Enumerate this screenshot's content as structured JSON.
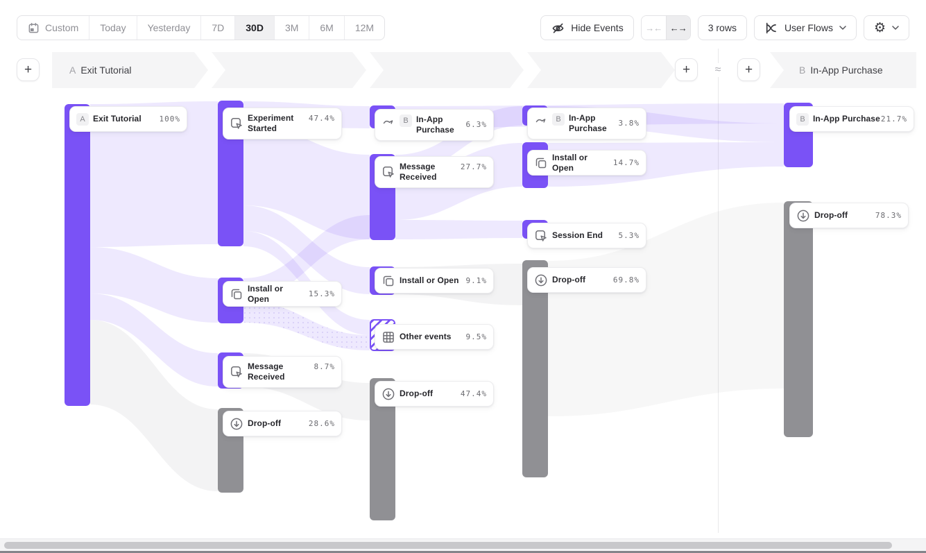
{
  "toolbar": {
    "date_ranges": [
      {
        "label": "Custom",
        "icon": "calendar-icon",
        "selected": false
      },
      {
        "label": "Today",
        "selected": false
      },
      {
        "label": "Yesterday",
        "selected": false
      },
      {
        "label": "7D",
        "selected": false
      },
      {
        "label": "30D",
        "selected": true
      },
      {
        "label": "3M",
        "selected": false
      },
      {
        "label": "6M",
        "selected": false
      },
      {
        "label": "12M",
        "selected": false
      }
    ],
    "hide_events_label": "Hide Events",
    "width_toggle": {
      "collapse_glyph": "→←",
      "expand_glyph": "←→",
      "active": "expand"
    },
    "rows_label": "3 rows",
    "view_selector_label": "User Flows",
    "settings_glyph": "⚙"
  },
  "flow_header": {
    "start": {
      "badge": "A",
      "label": "Exit Tutorial"
    },
    "end": {
      "badge": "B",
      "label": "In-App Purchase"
    },
    "connector_glyph": "≈",
    "add_step_glyph": "+"
  },
  "colors": {
    "purple": "#7A52F6",
    "gray": "#909094",
    "ribbon_purple": "#E9E3FB",
    "ribbon_gray": "#EFEEF3"
  },
  "columns": [
    {
      "nodes": [
        {
          "badge": "A",
          "label": "Exit Tutorial",
          "pct": "100%",
          "style": "purple"
        }
      ]
    },
    {
      "nodes": [
        {
          "icon": "cursor-click-icon",
          "label": "Experiment Started",
          "pct": "47.4%",
          "style": "purple"
        },
        {
          "icon": "copy-icon",
          "label": "Install or Open",
          "pct": "15.3%",
          "style": "purple"
        },
        {
          "icon": "cursor-click-icon",
          "label": "Message Received",
          "pct": "8.7%",
          "style": "purple"
        },
        {
          "icon": "drop-off-icon",
          "label": "Drop-off",
          "pct": "28.6%",
          "style": "gray"
        }
      ]
    },
    {
      "nodes": [
        {
          "icon": "jump-arrow-icon",
          "badge": "B",
          "label": "In-App Purchase",
          "pct": "6.3%",
          "style": "purple"
        },
        {
          "icon": "cursor-click-icon",
          "label": "Message Received",
          "pct": "27.7%",
          "style": "purple"
        },
        {
          "icon": "copy-icon",
          "label": "Install or Open",
          "pct": "9.1%",
          "style": "purple"
        },
        {
          "icon": "grid-icon",
          "label": "Other events",
          "pct": "9.5%",
          "style": "hatched"
        },
        {
          "icon": "drop-off-icon",
          "label": "Drop-off",
          "pct": "47.4%",
          "style": "gray"
        }
      ]
    },
    {
      "nodes": [
        {
          "icon": "jump-arrow-icon",
          "badge": "B",
          "label": "In-App Purchase",
          "pct": "3.8%",
          "style": "purple"
        },
        {
          "icon": "copy-icon",
          "label": "Install or Open",
          "pct": "14.7%",
          "style": "purple"
        },
        {
          "icon": "cursor-click-icon",
          "label": "Session End",
          "pct": "5.3%",
          "style": "purple"
        },
        {
          "icon": "drop-off-icon",
          "label": "Drop-off",
          "pct": "69.8%",
          "style": "gray"
        }
      ]
    },
    {
      "nodes": [
        {
          "badge": "B",
          "label": "In-App Purchase",
          "pct": "21.7%",
          "style": "purple"
        },
        {
          "icon": "drop-off-icon",
          "label": "Drop-off",
          "pct": "78.3%",
          "style": "gray"
        }
      ]
    }
  ]
}
